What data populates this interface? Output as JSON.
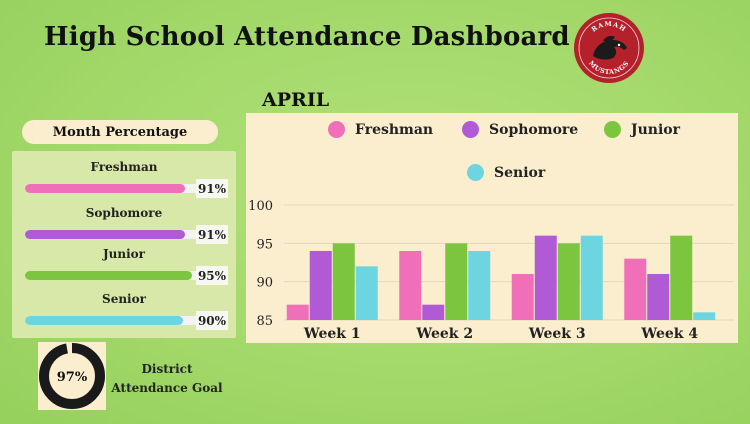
{
  "title": "High School Attendance Dashboard",
  "logo": {
    "top_text": "RAMAH",
    "bottom_text": "MUSTANGS",
    "icon": "mustang-horse-icon",
    "color": "#b5212b"
  },
  "month_label": "APRIL",
  "month_percentage": {
    "heading": "Month Percentage",
    "grades": [
      {
        "name": "Freshman",
        "percent_label": "91%",
        "value": 91,
        "color": "#ef70b8"
      },
      {
        "name": "Sophomore",
        "percent_label": "91%",
        "value": 91,
        "color": "#b05ad6"
      },
      {
        "name": "Junior",
        "percent_label": "95%",
        "value": 95,
        "color": "#7cc63f"
      },
      {
        "name": "Senior",
        "percent_label": "90%",
        "value": 90,
        "color": "#6dd5e0"
      }
    ]
  },
  "goal": {
    "value_label": "97%",
    "value": 97,
    "line1": "District",
    "line2": "Attendance Goal"
  },
  "chart_data": {
    "type": "bar",
    "title": "APRIL",
    "categories": [
      "Week 1",
      "Week 2",
      "Week 3",
      "Week 4"
    ],
    "series": [
      {
        "name": "Freshman",
        "color": "#ef70b8",
        "values": [
          87,
          94,
          91,
          93
        ]
      },
      {
        "name": "Sophomore",
        "color": "#b05ad6",
        "values": [
          94,
          87,
          96,
          91
        ]
      },
      {
        "name": "Junior",
        "color": "#7cc63f",
        "values": [
          95,
          95,
          95,
          96
        ]
      },
      {
        "name": "Senior",
        "color": "#6dd5e0",
        "values": [
          92,
          94,
          96,
          86
        ]
      }
    ],
    "ylim": [
      85,
      100
    ],
    "yticks": [
      "85",
      "90",
      "95",
      "100"
    ],
    "grid": true,
    "legend": "top"
  }
}
